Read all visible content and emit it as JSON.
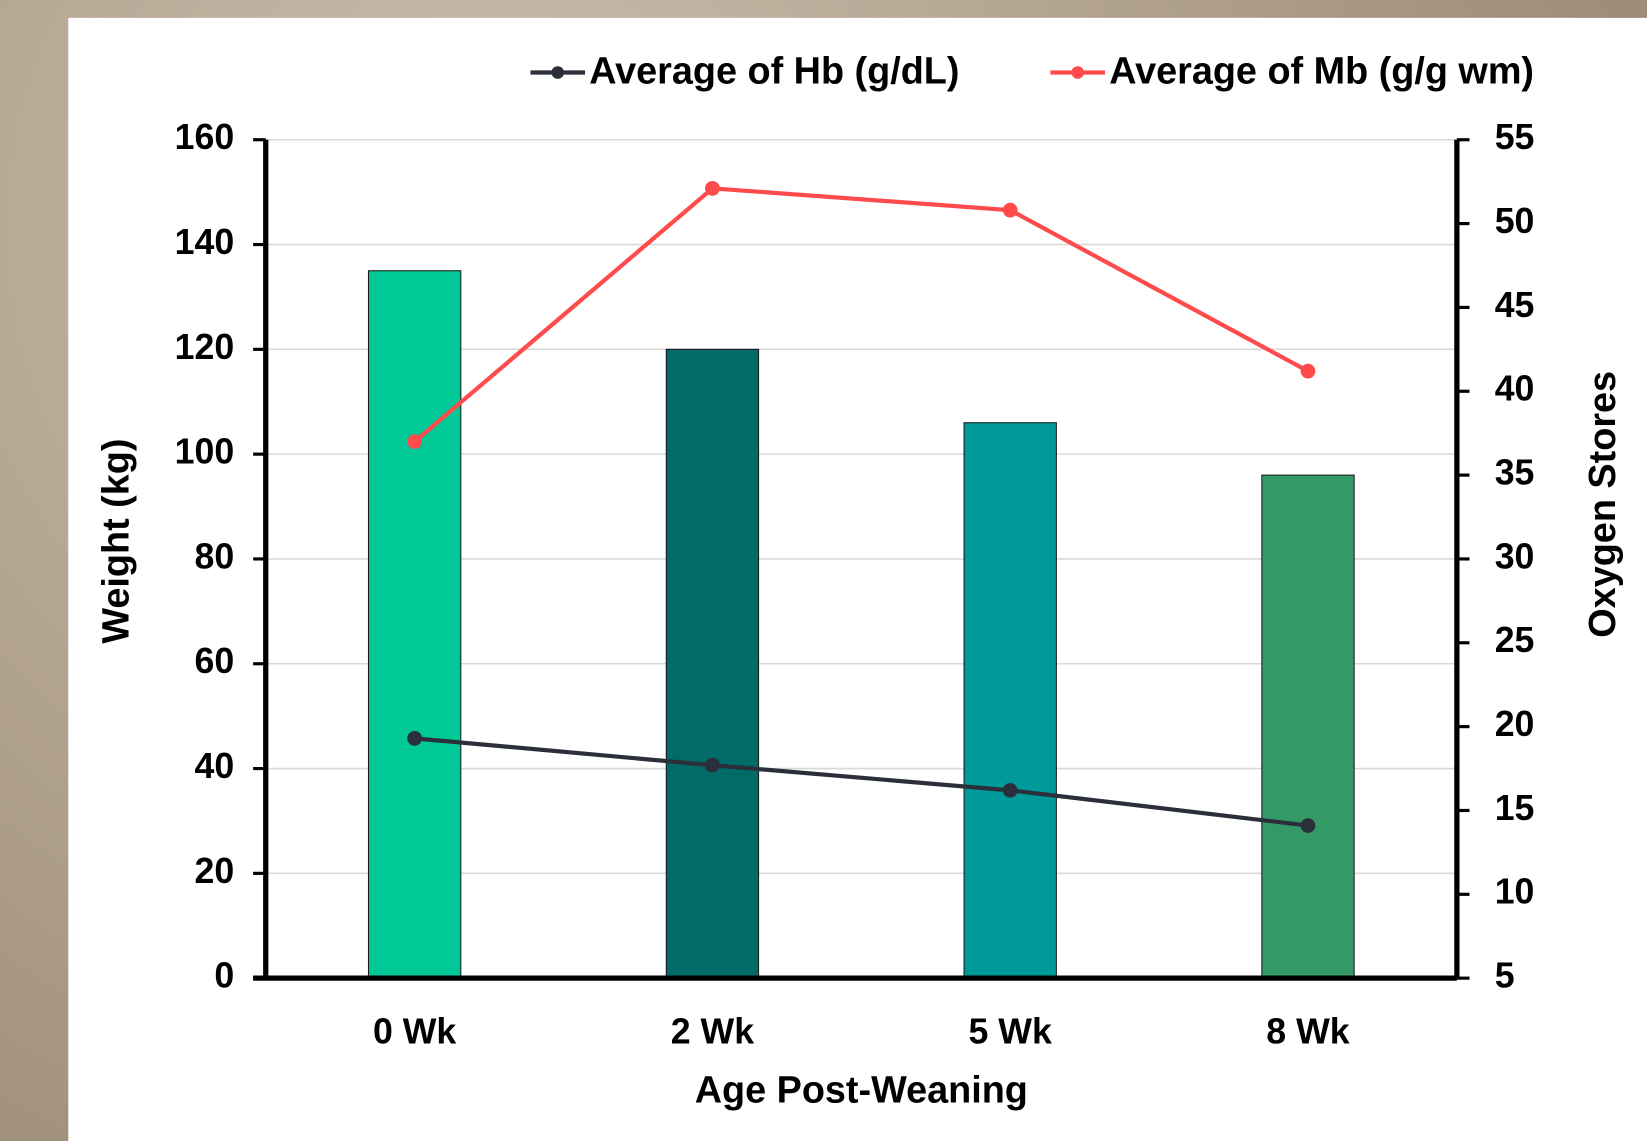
{
  "chart_data": {
    "type": "bar-line",
    "categories": [
      "0 Wk",
      "2 Wk",
      "5 Wk",
      "8 Wk"
    ],
    "values": [
      135,
      120,
      106,
      96
    ],
    "colors": [
      "#00c896",
      "#006b68",
      "#009a9a",
      "#339966"
    ],
    "series": [
      {
        "name": "Average of Hb (g/dL)",
        "color": "#2b2f3a",
        "axis": "y2",
        "values": [
          19.3,
          17.7,
          16.2,
          14.1
        ]
      },
      {
        "name": "Average of Mb (g/g wm)",
        "color": "#ff4b4b",
        "axis": "y2",
        "values": [
          37.0,
          52.1,
          50.8,
          41.2
        ]
      }
    ],
    "xlabel": "Age Post-Weaning",
    "ylabel": "Weight (kg)",
    "y2label": "Oxygen Stores",
    "ylim": [
      0,
      160
    ],
    "yticks": [
      0,
      20,
      40,
      60,
      80,
      100,
      120,
      140,
      160
    ],
    "y2lim": [
      5,
      55
    ],
    "y2ticks": [
      5,
      10,
      15,
      20,
      25,
      30,
      35,
      40,
      45,
      50,
      55
    ],
    "grid": true,
    "legend": "top"
  }
}
